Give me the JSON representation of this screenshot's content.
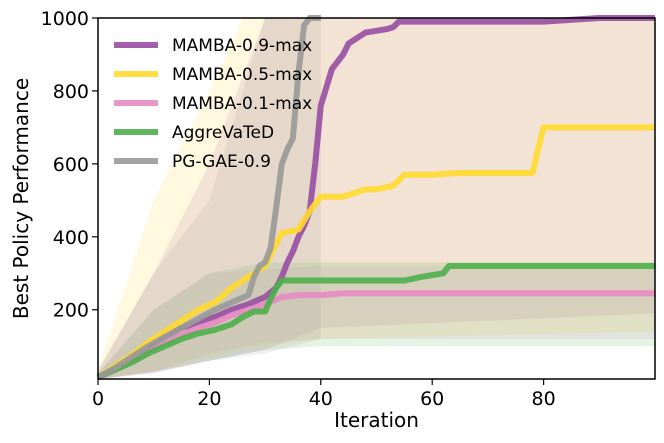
{
  "chart_data": {
    "type": "line",
    "title": "",
    "xlabel": "Iteration",
    "ylabel": "Best Policy Performance",
    "xlim": [
      0,
      100
    ],
    "ylim": [
      10,
      1000
    ],
    "xticks": [
      0,
      20,
      40,
      60,
      80
    ],
    "yticks": [
      200,
      400,
      600,
      800,
      1000
    ],
    "legend_position": "top-left",
    "series": [
      {
        "name": "MAMBA-0.9-max",
        "color": "#984ea3",
        "points": [
          [
            0,
            15
          ],
          [
            3,
            40
          ],
          [
            6,
            65
          ],
          [
            9,
            95
          ],
          [
            12,
            130
          ],
          [
            15,
            150
          ],
          [
            18,
            165
          ],
          [
            21,
            180
          ],
          [
            24,
            200
          ],
          [
            27,
            215
          ],
          [
            30,
            235
          ],
          [
            32,
            260
          ],
          [
            33,
            290
          ],
          [
            34,
            330
          ],
          [
            35,
            360
          ],
          [
            36,
            400
          ],
          [
            37,
            430
          ],
          [
            38,
            470
          ],
          [
            39,
            600
          ],
          [
            40,
            760
          ],
          [
            41,
            810
          ],
          [
            42,
            860
          ],
          [
            43,
            880
          ],
          [
            44,
            900
          ],
          [
            45,
            930
          ],
          [
            46,
            940
          ],
          [
            48,
            960
          ],
          [
            50,
            965
          ],
          [
            52,
            970
          ],
          [
            53,
            975
          ],
          [
            54,
            990
          ],
          [
            60,
            990
          ],
          [
            70,
            990
          ],
          [
            80,
            990
          ],
          [
            90,
            1000
          ],
          [
            100,
            1000
          ]
        ],
        "band": [
          [
            0,
            10,
            30
          ],
          [
            10,
            25,
            300
          ],
          [
            20,
            60,
            600
          ],
          [
            30,
            90,
            1000
          ],
          [
            40,
            150,
            1000
          ],
          [
            100,
            190,
            1000
          ]
        ]
      },
      {
        "name": "MAMBA-0.5-max",
        "color": "#ffd92f",
        "points": [
          [
            0,
            15
          ],
          [
            3,
            45
          ],
          [
            6,
            75
          ],
          [
            9,
            110
          ],
          [
            12,
            140
          ],
          [
            15,
            170
          ],
          [
            18,
            200
          ],
          [
            21,
            220
          ],
          [
            24,
            260
          ],
          [
            27,
            290
          ],
          [
            30,
            320
          ],
          [
            32,
            380
          ],
          [
            33,
            410
          ],
          [
            36,
            420
          ],
          [
            38,
            470
          ],
          [
            40,
            510
          ],
          [
            44,
            510
          ],
          [
            46,
            520
          ],
          [
            48,
            530
          ],
          [
            50,
            530
          ],
          [
            53,
            540
          ],
          [
            55,
            570
          ],
          [
            60,
            570
          ],
          [
            65,
            575
          ],
          [
            70,
            575
          ],
          [
            78,
            575
          ],
          [
            79,
            640
          ],
          [
            80,
            700
          ],
          [
            100,
            700
          ]
        ],
        "band": [
          [
            0,
            10,
            35
          ],
          [
            10,
            30,
            500
          ],
          [
            20,
            70,
            800
          ],
          [
            26,
            90,
            1000
          ],
          [
            40,
            120,
            1000
          ],
          [
            100,
            140,
            1000
          ]
        ]
      },
      {
        "name": "MAMBA-0.1-max",
        "color": "#e78ac3",
        "points": [
          [
            0,
            15
          ],
          [
            3,
            35
          ],
          [
            6,
            60
          ],
          [
            9,
            85
          ],
          [
            12,
            110
          ],
          [
            15,
            130
          ],
          [
            18,
            150
          ],
          [
            21,
            165
          ],
          [
            24,
            185
          ],
          [
            27,
            200
          ],
          [
            30,
            215
          ],
          [
            33,
            235
          ],
          [
            36,
            240
          ],
          [
            40,
            240
          ],
          [
            44,
            245
          ],
          [
            50,
            245
          ],
          [
            60,
            245
          ],
          [
            70,
            245
          ],
          [
            80,
            245
          ],
          [
            100,
            245
          ]
        ],
        "band": [
          [
            0,
            10,
            25
          ],
          [
            10,
            30,
            200
          ],
          [
            20,
            80,
            300
          ],
          [
            30,
            110,
            310
          ],
          [
            40,
            120,
            320
          ],
          [
            100,
            120,
            320
          ]
        ]
      },
      {
        "name": "AggreVaTeD",
        "color": "#4daf4a",
        "points": [
          [
            0,
            15
          ],
          [
            3,
            35
          ],
          [
            6,
            55
          ],
          [
            9,
            80
          ],
          [
            12,
            100
          ],
          [
            15,
            120
          ],
          [
            18,
            135
          ],
          [
            21,
            145
          ],
          [
            24,
            160
          ],
          [
            26,
            180
          ],
          [
            28,
            195
          ],
          [
            30,
            195
          ],
          [
            31,
            230
          ],
          [
            32,
            260
          ],
          [
            33,
            280
          ],
          [
            40,
            280
          ],
          [
            50,
            280
          ],
          [
            55,
            280
          ],
          [
            58,
            290
          ],
          [
            62,
            300
          ],
          [
            63,
            320
          ],
          [
            70,
            320
          ],
          [
            80,
            320
          ],
          [
            90,
            320
          ],
          [
            100,
            320
          ]
        ],
        "band": [
          [
            0,
            10,
            25
          ],
          [
            10,
            30,
            200
          ],
          [
            20,
            60,
            300
          ],
          [
            30,
            90,
            330
          ],
          [
            40,
            100,
            330
          ],
          [
            100,
            100,
            330
          ]
        ]
      },
      {
        "name": "PG-GAE-0.9",
        "color": "#999999",
        "points": [
          [
            0,
            15
          ],
          [
            3,
            40
          ],
          [
            6,
            70
          ],
          [
            9,
            100
          ],
          [
            12,
            125
          ],
          [
            15,
            150
          ],
          [
            18,
            175
          ],
          [
            21,
            200
          ],
          [
            24,
            220
          ],
          [
            27,
            240
          ],
          [
            28,
            290
          ],
          [
            29,
            320
          ],
          [
            30,
            330
          ],
          [
            31,
            370
          ],
          [
            32,
            480
          ],
          [
            33,
            600
          ],
          [
            34,
            640
          ],
          [
            35,
            670
          ],
          [
            36,
            850
          ],
          [
            37,
            980
          ],
          [
            38,
            1000
          ],
          [
            40,
            1000
          ]
        ],
        "band": [
          [
            0,
            10,
            35
          ],
          [
            10,
            30,
            300
          ],
          [
            20,
            60,
            500
          ],
          [
            30,
            80,
            1000
          ],
          [
            40,
            120,
            1000
          ]
        ]
      }
    ]
  }
}
